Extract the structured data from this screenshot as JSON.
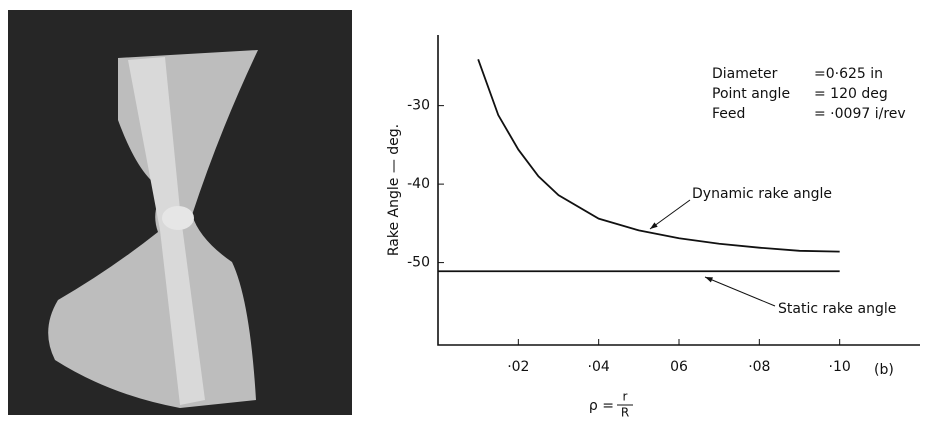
{
  "chart_data": {
    "type": "line",
    "x_label_lhs": "ρ =",
    "x_label_num": "r",
    "x_label_den": "R",
    "y_label": "Rake Angle  — deg.",
    "x": [
      0,
      0.01,
      0.015,
      0.02,
      0.025,
      0.03,
      0.04,
      0.05,
      0.06,
      0.07,
      0.08,
      0.09,
      0.1
    ],
    "series": [
      {
        "name": "Dynamic rake angle",
        "color": "#111111",
        "values": [
          null,
          -24.1,
          -31.2,
          -35.6,
          -39.0,
          -41.4,
          -44.4,
          -45.9,
          -46.9,
          -47.6,
          -48.1,
          -48.5,
          -48.6
        ]
      },
      {
        "name": "Static rake angle",
        "color": "#111111",
        "values": [
          -51.1,
          -51.1,
          -51.1,
          -51.1,
          -51.1,
          -51.1,
          -51.1,
          -51.1,
          -51.1,
          -51.1,
          -51.1,
          -51.1,
          -51.1
        ]
      }
    ],
    "xlim": [
      0,
      0.12
    ],
    "ylim": [
      -60.5,
      -21
    ],
    "xticks": [
      {
        "value": 0.02,
        "label": "·02"
      },
      {
        "value": 0.04,
        "label": "·04"
      },
      {
        "value": 0.06,
        "label": "06"
      },
      {
        "value": 0.08,
        "label": "·08"
      },
      {
        "value": 0.1,
        "label": "·10"
      }
    ],
    "yticks": [
      -30,
      -40,
      -50
    ],
    "info": [
      {
        "label": "Diameter",
        "value": "=0·625 in"
      },
      {
        "label": "Point angle",
        "value": "= 120 deg"
      },
      {
        "label": "Feed",
        "value": "= ·0097 i/rev"
      }
    ],
    "panel_label": "(b)",
    "grid": false
  }
}
